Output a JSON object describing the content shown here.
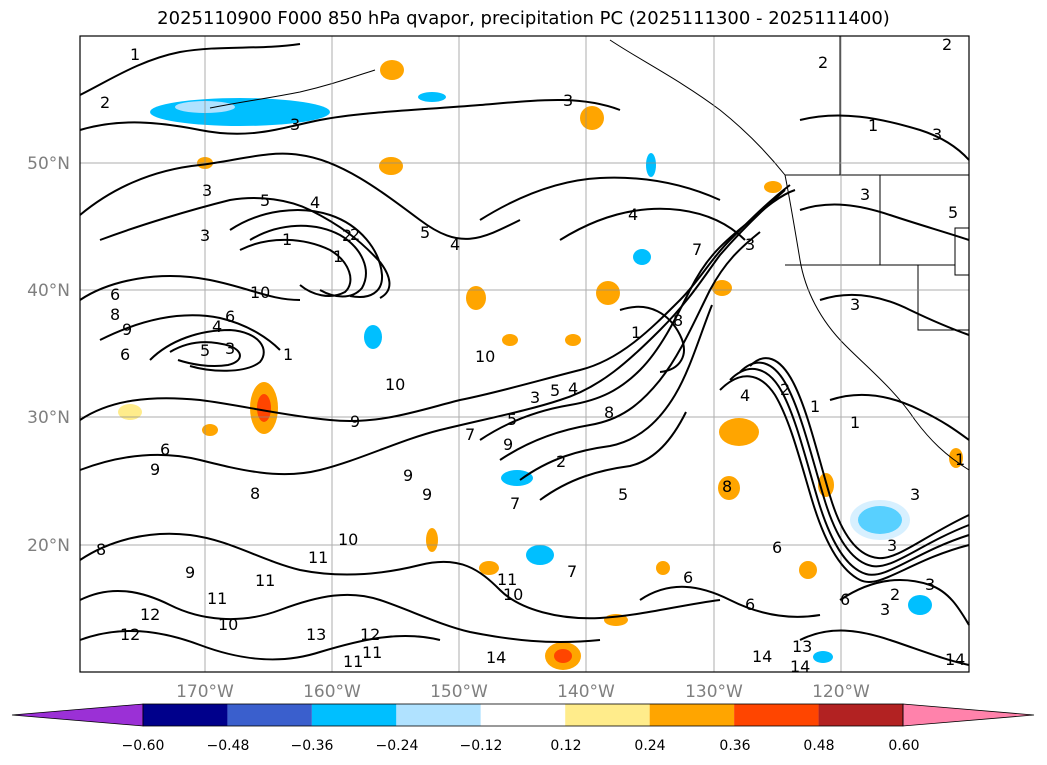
{
  "title": "2025110900 F000 850 hPa qvapor, precipitation PC (2025111300 - 2025111400)",
  "map": {
    "lat_labels": [
      "50°N",
      "40°N",
      "30°N",
      "20°N"
    ],
    "lon_labels": [
      "170°W",
      "160°W",
      "150°W",
      "140°W",
      "130°W",
      "120°W"
    ],
    "contour_labels": [
      "1",
      "2",
      "3",
      "2",
      "3",
      "1",
      "2",
      "3",
      "2",
      "5",
      "4",
      "1",
      "2",
      "1",
      "4",
      "5",
      "3",
      "3",
      "4",
      "5",
      "6",
      "10",
      "8",
      "9",
      "6",
      "4",
      "6",
      "5",
      "3",
      "1",
      "10",
      "9",
      "10",
      "5",
      "4",
      "3",
      "5",
      "8",
      "7",
      "9",
      "1",
      "4",
      "7",
      "8",
      "3",
      "2",
      "2",
      "1",
      "3",
      "3",
      "1",
      "3",
      "1",
      "6",
      "9",
      "8",
      "9",
      "7",
      "6",
      "9",
      "8",
      "5",
      "3",
      "11",
      "10",
      "8",
      "9",
      "11",
      "11",
      "12",
      "13",
      "10",
      "12",
      "11",
      "12",
      "11",
      "14",
      "7",
      "6",
      "11",
      "10",
      "6",
      "14",
      "13",
      "14",
      "3",
      "2",
      "6",
      "3",
      "14"
    ]
  },
  "colorbar": {
    "ticks": [
      "−0.60",
      "−0.48",
      "−0.36",
      "−0.24",
      "−0.12",
      "0.12",
      "0.24",
      "0.36",
      "0.48",
      "0.60"
    ],
    "colors": [
      "#9b30d6",
      "#00008b",
      "#3a5fcd",
      "#00bfff",
      "#b0e2ff",
      "#ffffff",
      "#ffec8b",
      "#ffa500",
      "#ff4500",
      "#b22222",
      "#ff82ab"
    ]
  }
}
